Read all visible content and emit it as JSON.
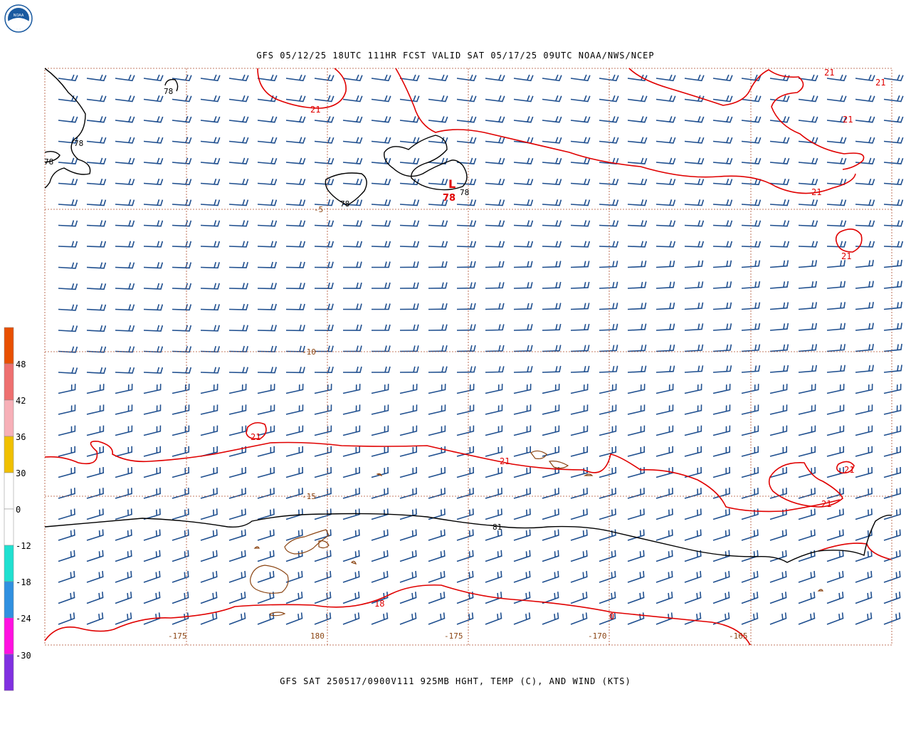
{
  "header": {
    "title": "GFS 05/12/25 18UTC 111HR FCST VALID SAT 05/17/25 09UTC NOAA/NWS/NCEP",
    "logo_text": "NOAA"
  },
  "footer": {
    "caption": "GFS SAT 250517/0900V111 925MB HGHT, TEMP (C), AND WIND (KTS)"
  },
  "map": {
    "lat_labels": [
      "-5",
      "-10",
      "-15"
    ],
    "lon_labels": [
      "-175",
      "180",
      "-175",
      "-170",
      "-165"
    ],
    "contour_labels": {
      "temp_21": "21",
      "temp_18": "18",
      "height_78": "78",
      "height_81": "81",
      "low_marker": "L",
      "low_value": "78",
      "zero": "0"
    },
    "colors": {
      "wind_barb": "#1f4f8f",
      "temp_contour": "#e00000",
      "height_contour": "#000000",
      "coastline": "#8b4513",
      "grid": "#b05030"
    }
  },
  "colorbar": {
    "labels": [
      "48",
      "42",
      "36",
      "30",
      "0",
      "-12",
      "-18",
      "-24",
      "-30"
    ],
    "colors": [
      "#e85000",
      "#ee7070",
      "#f7b0b8",
      "#f0c000",
      "#ffffff",
      "#ffffff",
      "#20e0d0",
      "#3090e0",
      "#ff10e0",
      "#8030e0"
    ]
  }
}
